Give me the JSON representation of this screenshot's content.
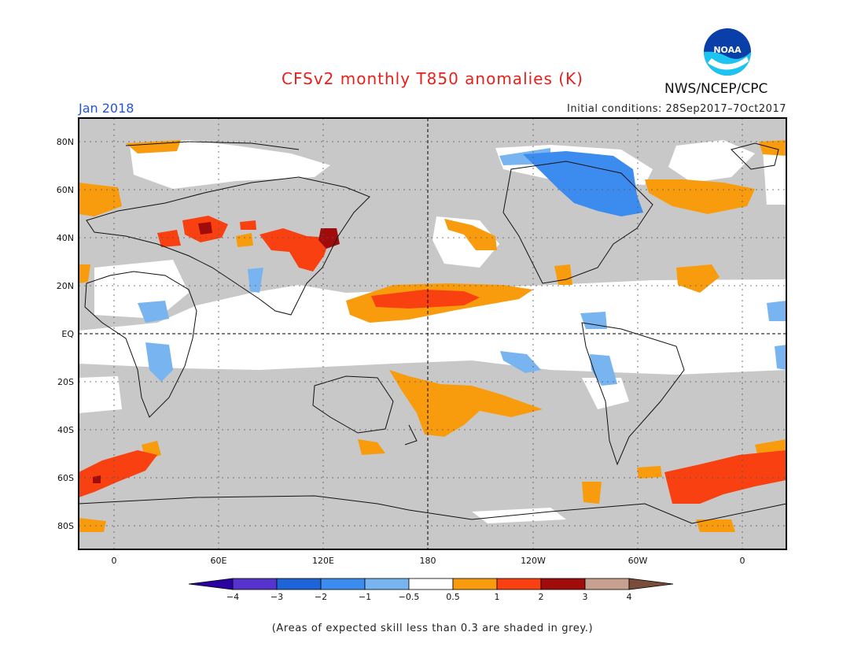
{
  "header": {
    "title": "CFSv2 monthly T850 anomalies (K)",
    "month": "Jan 2018",
    "initial_conditions": "Initial conditions: 28Sep2017–7Oct2017",
    "agency": "NWS/NCEP/CPC",
    "logo_text": "NOAA"
  },
  "map": {
    "lat_labels": [
      "80N",
      "60N",
      "40N",
      "20N",
      "EQ",
      "20S",
      "40S",
      "60S",
      "80S"
    ],
    "lon_labels": [
      "0",
      "60E",
      "120E",
      "180",
      "120W",
      "60W",
      "0"
    ],
    "lon_range": [
      -20,
      385
    ],
    "lat_range": [
      -90,
      90
    ]
  },
  "colorbar": {
    "tick_labels": [
      "−4",
      "−3",
      "−2",
      "−1",
      "−0.5",
      "0.5",
      "1",
      "2",
      "3",
      "4"
    ],
    "colors": [
      "#2a00a0",
      "#5533cc",
      "#1e64d8",
      "#3c8cf0",
      "#78b4f0",
      "#ffffff",
      "#f89c0e",
      "#f84010",
      "#a00c0c",
      "#c8a090",
      "#7a4c3a"
    ]
  },
  "footer": {
    "note": "(Areas of expected skill less than 0.3 are shaded in grey.)"
  },
  "colors": {
    "grey_mask": "#c8c8c8",
    "title_red": "#e8201c",
    "month_blue": "#2255dd"
  }
}
